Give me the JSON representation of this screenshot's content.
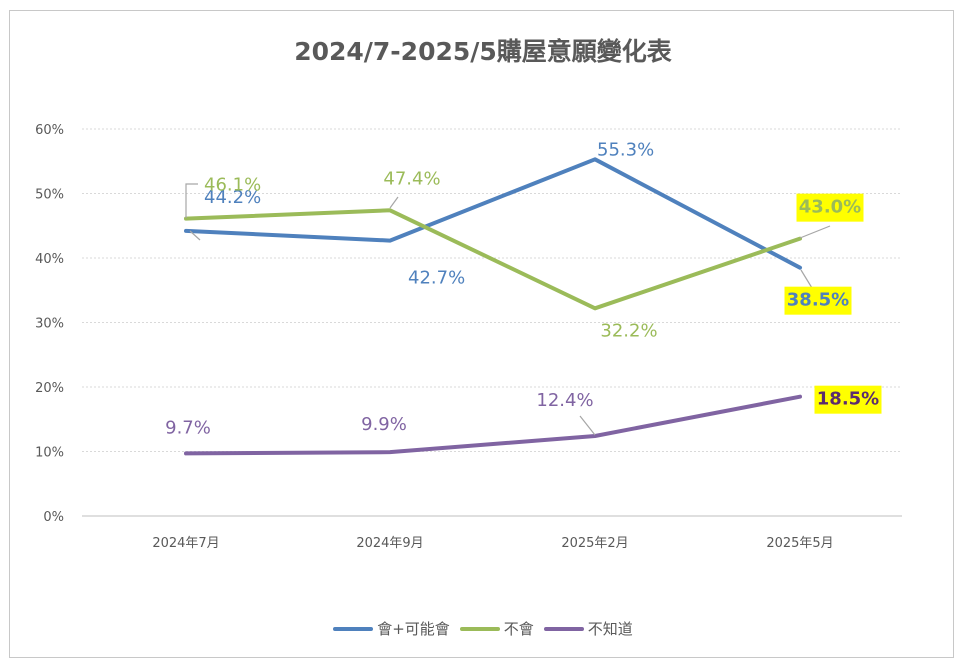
{
  "chart_data": {
    "type": "line",
    "title": "2024/7-2025/5購屋意願變化表",
    "categories": [
      "2024年7月",
      "2024年9月",
      "2025年2月",
      "2025年5月"
    ],
    "yticks": [
      "0%",
      "10%",
      "20%",
      "30%",
      "40%",
      "50%",
      "60%"
    ],
    "ylim": [
      0,
      60
    ],
    "grid": true,
    "legend_position": "bottom",
    "series": [
      {
        "name": "會+可能會",
        "color": "#4f81bd",
        "values": [
          44.2,
          42.7,
          55.3,
          38.5
        ],
        "labels": [
          "44.2%",
          "42.7%",
          "55.3%",
          "38.5%"
        ],
        "highlight_last": true
      },
      {
        "name": "不會",
        "color": "#9bbb59",
        "values": [
          46.1,
          47.4,
          32.2,
          43.0
        ],
        "labels": [
          "46.1%",
          "47.4%",
          "32.2%",
          "43.0%"
        ],
        "highlight_last": true
      },
      {
        "name": "不知道",
        "color": "#8064a2",
        "values": [
          9.7,
          9.9,
          12.4,
          18.5
        ],
        "labels": [
          "9.7%",
          "9.9%",
          "12.4%",
          "18.5%"
        ],
        "highlight_last": true
      }
    ],
    "highlight_color": "#ffff00"
  }
}
